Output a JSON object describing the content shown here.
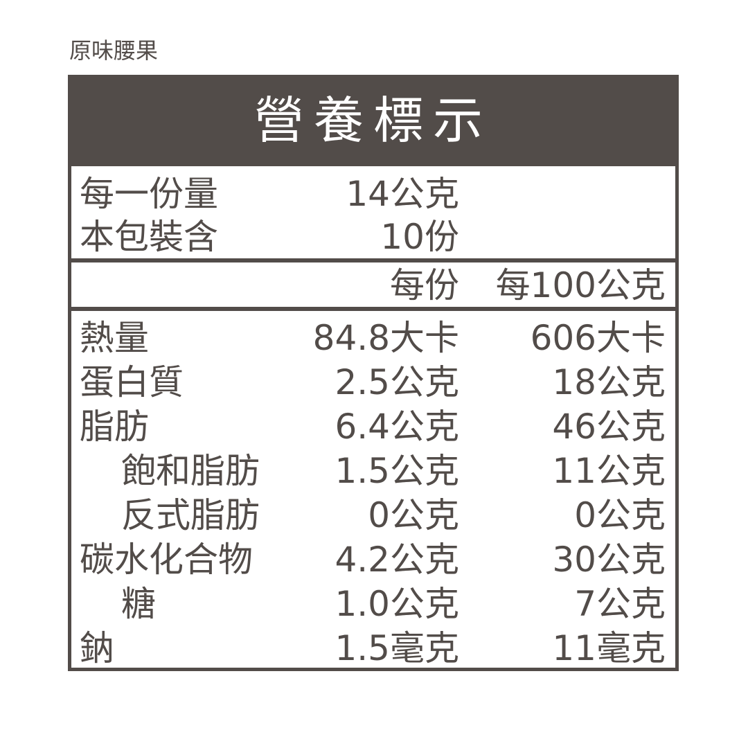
{
  "product_name": "原味腰果",
  "title": "營養標示",
  "serving": [
    {
      "label": "每一份量",
      "value": "14公克"
    },
    {
      "label": "本包裝含",
      "value": "10份"
    }
  ],
  "columns": {
    "per_serving": "每份",
    "per_100g": "每100公克"
  },
  "nutrients": [
    {
      "label": "熱量",
      "indent": false,
      "per_serving": "84.8大卡",
      "per_100g": "606大卡"
    },
    {
      "label": "蛋白質",
      "indent": false,
      "per_serving": "2.5公克",
      "per_100g": "18公克"
    },
    {
      "label": "脂肪",
      "indent": false,
      "per_serving": "6.4公克",
      "per_100g": "46公克"
    },
    {
      "label": "飽和脂肪",
      "indent": true,
      "per_serving": "1.5公克",
      "per_100g": "11公克"
    },
    {
      "label": "反式脂肪",
      "indent": true,
      "per_serving": "0公克",
      "per_100g": "0公克"
    },
    {
      "label": "碳水化合物",
      "indent": false,
      "per_serving": "4.2公克",
      "per_100g": "30公克"
    },
    {
      "label": "糖",
      "indent": true,
      "per_serving": "1.0公克",
      "per_100g": "7公克"
    },
    {
      "label": "鈉",
      "indent": false,
      "per_serving": "1.5毫克",
      "per_100g": "11毫克"
    }
  ],
  "colors": {
    "ink": "#524c49",
    "background": "#ffffff"
  }
}
